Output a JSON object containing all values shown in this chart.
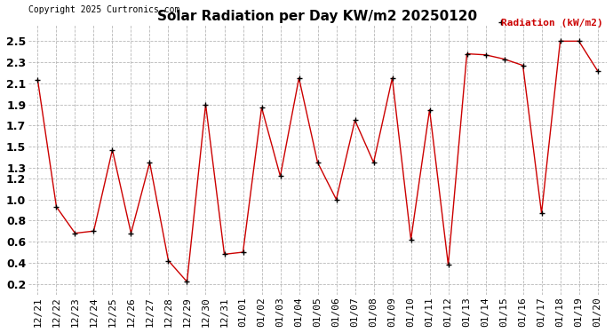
{
  "title": "Solar Radiation per Day KW/m2 20250120",
  "copyright": "Copyright 2025 Curtronics.com",
  "legend_label": "Radiation (kW/m2)",
  "dates": [
    "12/21",
    "12/22",
    "12/23",
    "12/24",
    "12/25",
    "12/26",
    "12/27",
    "12/28",
    "12/29",
    "12/30",
    "12/31",
    "01/01",
    "01/02",
    "01/03",
    "01/04",
    "01/05",
    "01/06",
    "01/07",
    "01/08",
    "01/09",
    "01/10",
    "01/11",
    "01/12",
    "01/13",
    "01/14",
    "01/15",
    "01/16",
    "01/17",
    "01/18",
    "01/19",
    "01/20"
  ],
  "values": [
    2.13,
    0.93,
    0.68,
    0.7,
    1.47,
    0.68,
    1.35,
    0.42,
    0.22,
    1.9,
    0.48,
    0.5,
    1.87,
    1.22,
    2.15,
    1.35,
    1.0,
    1.75,
    1.35,
    2.15,
    0.62,
    1.85,
    0.38,
    2.38,
    2.37,
    2.33,
    2.27,
    0.87,
    2.5,
    2.5,
    2.22
  ],
  "line_color": "#cc0000",
  "marker_color": "black",
  "background_color": "#ffffff",
  "grid_color": "#b0b0b0",
  "ylim": [
    0.1,
    2.65
  ],
  "yticks": [
    0.2,
    0.4,
    0.6,
    0.8,
    1.0,
    1.2,
    1.3,
    1.5,
    1.7,
    1.9,
    2.1,
    2.3,
    2.5
  ],
  "title_fontsize": 11,
  "copyright_fontsize": 7,
  "legend_fontsize": 8,
  "tick_fontsize": 8,
  "ytick_fontsize": 9
}
